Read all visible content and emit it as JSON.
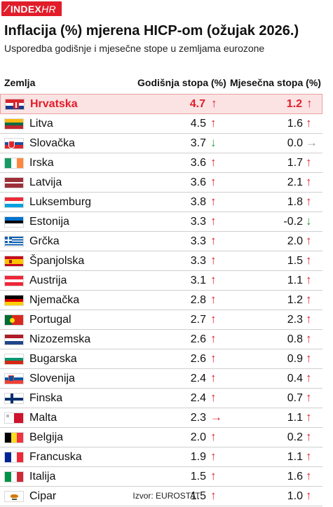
{
  "brand": {
    "logo_main": "INDEX",
    "logo_suffix": "HR"
  },
  "title": "Inflacija (%) mjerena HICP-om (ožujak 2026.)",
  "subtitle": "Usporedba godišnje i mjesečne stope u zemljama eurozone",
  "columns": {
    "country": "Zemlja",
    "annual": "Godišnja stopa (%)",
    "monthly": "Mjesečna stopa (%)"
  },
  "rows": [
    {
      "country": "Hrvatska",
      "annual": "4.7",
      "annual_trend": "up",
      "monthly": "1.2",
      "monthly_trend": "up",
      "highlight": true,
      "flag": "croatia-flag-icon"
    },
    {
      "country": "Litva",
      "annual": "4.5",
      "annual_trend": "up",
      "monthly": "1.6",
      "monthly_trend": "up",
      "flag": "lithuania-flag-icon"
    },
    {
      "country": "Slovačka",
      "annual": "3.7",
      "annual_trend": "down",
      "monthly": "0.0",
      "monthly_trend": "flat",
      "flag": "slovakia-flag-icon"
    },
    {
      "country": "Irska",
      "annual": "3.6",
      "annual_trend": "up",
      "monthly": "1.7",
      "monthly_trend": "up",
      "flag": "ireland-flag-icon"
    },
    {
      "country": "Latvija",
      "annual": "3.6",
      "annual_trend": "up",
      "monthly": "2.1",
      "monthly_trend": "up",
      "flag": "latvia-flag-icon"
    },
    {
      "country": "Luksemburg",
      "annual": "3.8",
      "annual_trend": "up",
      "monthly": "1.8",
      "monthly_trend": "up",
      "flag": "luxembourg-flag-icon"
    },
    {
      "country": "Estonija",
      "annual": "3.3",
      "annual_trend": "up",
      "monthly": "-0.2",
      "monthly_trend": "down",
      "flag": "estonia-flag-icon"
    },
    {
      "country": "Grčka",
      "annual": "3.3",
      "annual_trend": "up",
      "monthly": "2.0",
      "monthly_trend": "up",
      "flag": "greece-flag-icon"
    },
    {
      "country": "Španjolska",
      "annual": "3.3",
      "annual_trend": "up",
      "monthly": "1.5",
      "monthly_trend": "up",
      "flag": "spain-flag-icon"
    },
    {
      "country": "Austrija",
      "annual": "3.1",
      "annual_trend": "up",
      "monthly": "1.1",
      "monthly_trend": "up",
      "flag": "austria-flag-icon"
    },
    {
      "country": "Njemačka",
      "annual": "2.8",
      "annual_trend": "up",
      "monthly": "1.2",
      "monthly_trend": "up",
      "flag": "germany-flag-icon"
    },
    {
      "country": "Portugal",
      "annual": "2.7",
      "annual_trend": "up",
      "monthly": "2.3",
      "monthly_trend": "up",
      "flag": "portugal-flag-icon"
    },
    {
      "country": "Nizozemska",
      "annual": "2.6",
      "annual_trend": "up",
      "monthly": "0.8",
      "monthly_trend": "up",
      "flag": "netherlands-flag-icon"
    },
    {
      "country": "Bugarska",
      "annual": "2.6",
      "annual_trend": "up",
      "monthly": "0.9",
      "monthly_trend": "up",
      "flag": "bulgaria-flag-icon"
    },
    {
      "country": "Slovenija",
      "annual": "2.4",
      "annual_trend": "up",
      "monthly": "0.4",
      "monthly_trend": "up",
      "flag": "slovenia-flag-icon"
    },
    {
      "country": "Finska",
      "annual": "2.4",
      "annual_trend": "up",
      "monthly": "0.7",
      "monthly_trend": "up",
      "flag": "finland-flag-icon"
    },
    {
      "country": "Malta",
      "annual": "2.3",
      "annual_trend": "right",
      "monthly": "1.1",
      "monthly_trend": "up",
      "flag": "malta-flag-icon"
    },
    {
      "country": "Belgija",
      "annual": "2.0",
      "annual_trend": "up",
      "monthly": "0.2",
      "monthly_trend": "up",
      "flag": "belgium-flag-icon"
    },
    {
      "country": "Francuska",
      "annual": "1.9",
      "annual_trend": "up",
      "monthly": "1.1",
      "monthly_trend": "up",
      "flag": "france-flag-icon"
    },
    {
      "country": "Italija",
      "annual": "1.5",
      "annual_trend": "up",
      "monthly": "1.6",
      "monthly_trend": "up",
      "flag": "italy-flag-icon"
    },
    {
      "country": "Cipar",
      "annual": "1.5",
      "annual_trend": "up",
      "monthly": "1.0",
      "monthly_trend": "up",
      "flag": "cyprus-flag-icon"
    }
  ],
  "source": "Izvor: EUROSTAT",
  "colors": {
    "accent": "#e11d2a",
    "down": "#2e9a3a",
    "neutral": "#9a9a9a",
    "highlight_bg": "#fbe3e3"
  }
}
